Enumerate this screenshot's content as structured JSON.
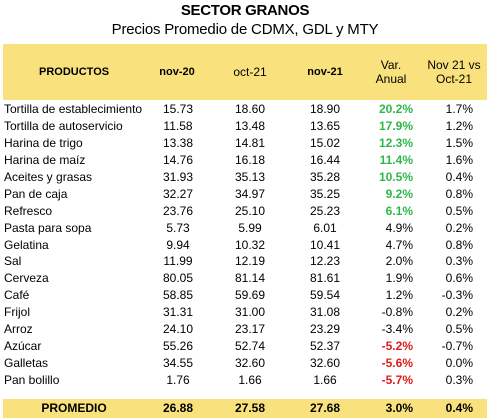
{
  "title": "SECTOR GRANOS",
  "subtitle": "Precios Promedio de CDMX, GDL y MTY",
  "header": {
    "productos": "PRODUCTOS",
    "nov20": "nov-20",
    "oct21": "oct-21",
    "nov21": "nov-21",
    "var_anual": "Var. Anual",
    "nov_vs_oct": "Nov 21 vs Oct-21"
  },
  "rows": [
    {
      "producto": "Tortilla de establecimiento",
      "nov20": "15.73",
      "oct21": "18.60",
      "nov21": "18.90",
      "var": "20.2%",
      "var_style": "pos",
      "mom": "1.7%"
    },
    {
      "producto": "Tortilla de autoservicio",
      "nov20": "11.58",
      "oct21": "13.48",
      "nov21": "13.65",
      "var": "17.9%",
      "var_style": "pos",
      "mom": "1.2%"
    },
    {
      "producto": "Harina de trigo",
      "nov20": "13.38",
      "oct21": "14.81",
      "nov21": "15.02",
      "var": "12.3%",
      "var_style": "pos",
      "mom": "1.5%"
    },
    {
      "producto": "Harina de maíz",
      "nov20": "14.76",
      "oct21": "16.18",
      "nov21": "16.44",
      "var": "11.4%",
      "var_style": "pos",
      "mom": "1.6%"
    },
    {
      "producto": "Aceites y grasas",
      "nov20": "31.93",
      "oct21": "35.13",
      "nov21": "35.28",
      "var": "10.5%",
      "var_style": "pos",
      "mom": "0.4%"
    },
    {
      "producto": "Pan de caja",
      "nov20": "32.27",
      "oct21": "34.97",
      "nov21": "35.25",
      "var": "9.2%",
      "var_style": "pos",
      "mom": "0.8%"
    },
    {
      "producto": "Refresco",
      "nov20": "23.76",
      "oct21": "25.10",
      "nov21": "25.23",
      "var": "6.1%",
      "var_style": "pos",
      "mom": "0.5%"
    },
    {
      "producto": "Pasta para sopa",
      "nov20": "5.73",
      "oct21": "5.99",
      "nov21": "6.01",
      "var": "4.9%",
      "var_style": "plain",
      "mom": "0.2%"
    },
    {
      "producto": "Gelatina",
      "nov20": "9.94",
      "oct21": "10.32",
      "nov21": "10.41",
      "var": "4.7%",
      "var_style": "plain",
      "mom": "0.8%"
    },
    {
      "producto": "Sal",
      "nov20": "11.99",
      "oct21": "12.19",
      "nov21": "12.23",
      "var": "2.0%",
      "var_style": "plain",
      "mom": "0.3%"
    },
    {
      "producto": "Cerveza",
      "nov20": "80.05",
      "oct21": "81.14",
      "nov21": "81.61",
      "var": "1.9%",
      "var_style": "plain",
      "mom": "0.6%"
    },
    {
      "producto": "Café",
      "nov20": "58.85",
      "oct21": "59.69",
      "nov21": "59.54",
      "var": "1.2%",
      "var_style": "plain",
      "mom": "-0.3%"
    },
    {
      "producto": "Frijol",
      "nov20": "31.31",
      "oct21": "31.00",
      "nov21": "31.08",
      "var": "-0.8%",
      "var_style": "plain",
      "mom": "0.2%"
    },
    {
      "producto": "Arroz",
      "nov20": "24.10",
      "oct21": "23.17",
      "nov21": "23.29",
      "var": "-3.4%",
      "var_style": "plain",
      "mom": "0.5%"
    },
    {
      "producto": "Azúcar",
      "nov20": "55.26",
      "oct21": "52.74",
      "nov21": "52.37",
      "var": "-5.2%",
      "var_style": "neg",
      "mom": "-0.7%"
    },
    {
      "producto": "Galletas",
      "nov20": "34.55",
      "oct21": "32.60",
      "nov21": "32.60",
      "var": "-5.6%",
      "var_style": "neg",
      "mom": "0.0%"
    },
    {
      "producto": "Pan bolillo",
      "nov20": "1.76",
      "oct21": "1.66",
      "nov21": "1.66",
      "var": "-5.7%",
      "var_style": "neg",
      "mom": "0.3%"
    }
  ],
  "footer": {
    "label": "PROMEDIO",
    "nov20": "26.88",
    "oct21": "27.58",
    "nov21": "27.68",
    "var": "3.0%",
    "mom": "0.4%"
  },
  "colors": {
    "header_bg": "#f9e27d",
    "positive": "#2eb84a",
    "negative": "#e01b1b"
  }
}
